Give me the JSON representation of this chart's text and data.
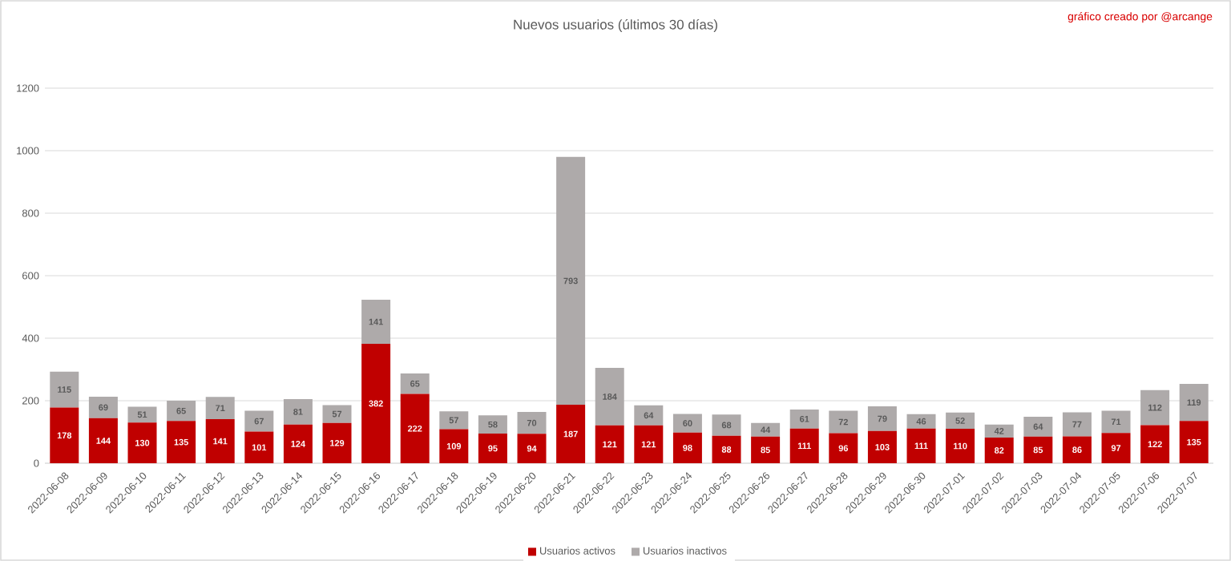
{
  "chart_data": {
    "type": "bar",
    "title": "Nuevos usuarios (últimos 30 días)",
    "annotations": [
      "gráfico creado por @arcange"
    ],
    "categories": [
      "2022-06-08",
      "2022-06-09",
      "2022-06-10",
      "2022-06-11",
      "2022-06-12",
      "2022-06-13",
      "2022-06-14",
      "2022-06-15",
      "2022-06-16",
      "2022-06-17",
      "2022-06-18",
      "2022-06-19",
      "2022-06-20",
      "2022-06-21",
      "2022-06-22",
      "2022-06-23",
      "2022-06-24",
      "2022-06-25",
      "2022-06-26",
      "2022-06-27",
      "2022-06-28",
      "2022-06-29",
      "2022-06-30",
      "2022-07-01",
      "2022-07-02",
      "2022-07-03",
      "2022-07-04",
      "2022-07-05",
      "2022-07-06",
      "2022-07-07"
    ],
    "series": [
      {
        "name": "Usuarios activos",
        "color": "#c00000",
        "values": [
          178,
          144,
          130,
          135,
          141,
          101,
          124,
          129,
          382,
          222,
          109,
          95,
          94,
          187,
          121,
          121,
          98,
          88,
          85,
          111,
          96,
          103,
          111,
          110,
          82,
          85,
          86,
          97,
          122,
          135
        ]
      },
      {
        "name": "Usuarios inactivos",
        "color": "#aeaaaa",
        "values": [
          115,
          69,
          51,
          65,
          71,
          67,
          81,
          57,
          141,
          65,
          57,
          58,
          70,
          793,
          184,
          64,
          60,
          68,
          44,
          61,
          72,
          79,
          46,
          52,
          42,
          64,
          77,
          71,
          112,
          119
        ]
      }
    ],
    "stacked": true,
    "data_labels": true,
    "ylim": [
      0,
      1200
    ],
    "yticks": [
      0,
      200,
      400,
      600,
      800,
      1000,
      1200
    ],
    "grid": "y",
    "legend": "bottom"
  }
}
